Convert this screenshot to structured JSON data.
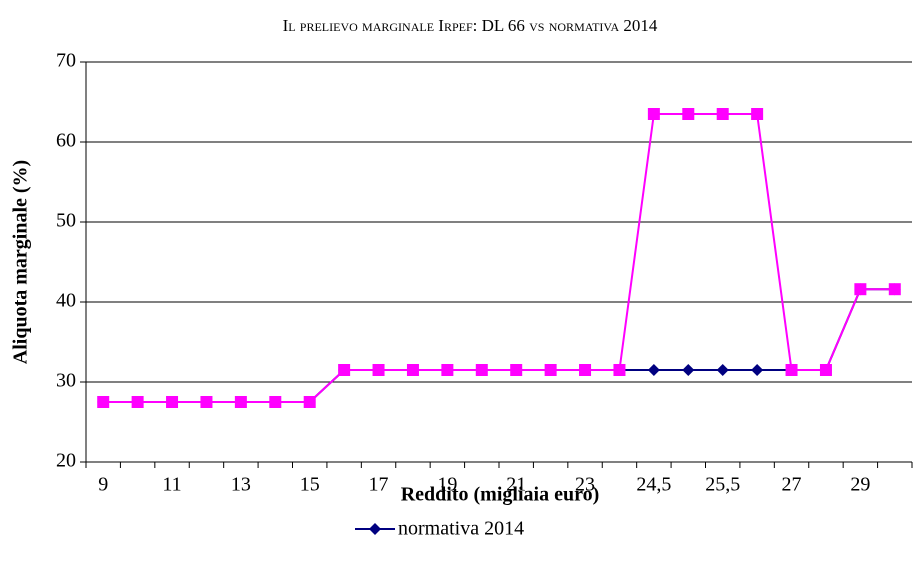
{
  "chart_data": {
    "type": "line",
    "title": "Il prelievo marginale Irpef: DL 66 vs normativa 2014",
    "x_label": "Reddito (migliaia euro)",
    "y_label": "Aliquota marginale (%)",
    "categories": [
      "9",
      null,
      "11",
      null,
      "13",
      null,
      "15",
      null,
      "17",
      null,
      "19",
      null,
      "21",
      null,
      "23",
      null,
      "24,5",
      null,
      "25,5",
      null,
      "27",
      null,
      "29",
      null
    ],
    "series": [
      {
        "name": "normativa 2014",
        "color": "#000080",
        "marker": "diamond",
        "values": [
          27.5,
          27.5,
          27.5,
          27.5,
          27.5,
          27.5,
          27.5,
          31.5,
          31.5,
          31.5,
          31.5,
          31.5,
          31.5,
          31.5,
          31.5,
          31.5,
          31.5,
          31.5,
          31.5,
          31.5,
          31.5,
          31.5,
          41.6,
          41.6
        ]
      },
      {
        "color": "#ff00ff",
        "marker": "square",
        "values": [
          27.5,
          27.5,
          27.5,
          27.5,
          27.5,
          27.5,
          27.5,
          31.5,
          31.5,
          31.5,
          31.5,
          31.5,
          31.5,
          31.5,
          31.5,
          31.5,
          63.5,
          63.5,
          63.5,
          63.5,
          31.5,
          31.5,
          41.6,
          41.6
        ]
      }
    ],
    "ylim": [
      20,
      70
    ],
    "yticks": [
      20,
      30,
      40,
      50,
      60,
      70
    ],
    "grid": true
  }
}
